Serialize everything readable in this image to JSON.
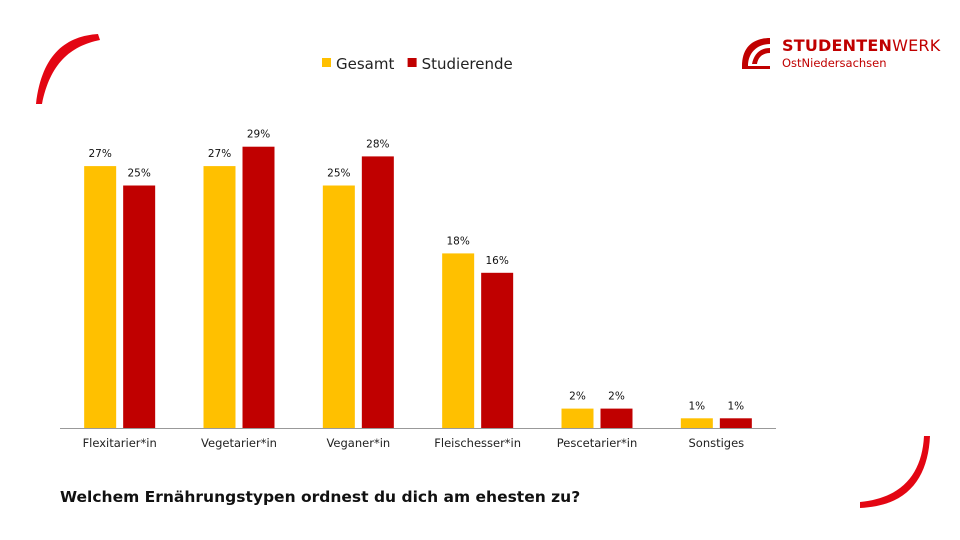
{
  "slide": {
    "question": "Welchem Ernährungstypen ordnest du dich am ehesten zu?",
    "logo": {
      "name_bold": "STUDENTEN",
      "name_light": "WERK",
      "subtitle": "OstNiedersachsen"
    },
    "colors": {
      "brand_red": "#c00000",
      "gesamt": "#ffc000",
      "studierende": "#c00000"
    }
  },
  "chart_data": {
    "type": "bar",
    "categories": [
      "Flexitarier*in",
      "Vegetarier*in",
      "Veganer*in",
      "Fleischesser*in",
      "Pescetarier*in",
      "Sonstiges"
    ],
    "series": [
      {
        "name": "Gesamt",
        "color": "#ffc000",
        "values": [
          27,
          27,
          25,
          18,
          2,
          1
        ],
        "labels": [
          "27%",
          "27%",
          "25%",
          "18%",
          "2%",
          "1%"
        ]
      },
      {
        "name": "Studierende",
        "color": "#c00000",
        "values": [
          25,
          29,
          28,
          16,
          2,
          1
        ],
        "labels": [
          "25%",
          "29%",
          "28%",
          "16%",
          "2%",
          "1%"
        ]
      }
    ],
    "unit": "%",
    "ylim": [
      0,
      32
    ],
    "grid": false,
    "legend": "top-center",
    "title": "",
    "xlabel": "",
    "ylabel": ""
  }
}
